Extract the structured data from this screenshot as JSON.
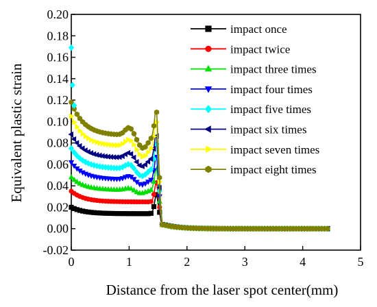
{
  "chart_data": {
    "type": "line",
    "title": "",
    "xlabel": "Distance from the laser spot center(mm)",
    "ylabel": "Equivalent plastic strain",
    "xlim": [
      0,
      5
    ],
    "ylim": [
      -0.02,
      0.2
    ],
    "x_ticks": [
      0,
      1,
      2,
      3,
      4,
      5
    ],
    "y_ticks": [
      -0.02,
      0.0,
      0.02,
      0.04,
      0.06,
      0.08,
      0.1,
      0.12,
      0.14,
      0.16,
      0.18,
      0.2
    ],
    "x_tick_labels": [
      "0",
      "1",
      "2",
      "3",
      "4",
      "5"
    ],
    "y_tick_labels": [
      "-0.02",
      "0.00",
      "0.02",
      "0.04",
      "0.06",
      "0.08",
      "0.10",
      "0.12",
      "0.14",
      "0.16",
      "0.18",
      "0.20"
    ],
    "grid": false,
    "legend_position": "top-right",
    "series": [
      {
        "name": "impact once",
        "color": "#000000",
        "marker": "square",
        "base": 0.014,
        "center": 0.02,
        "dip": 0.0,
        "dip_x": 1.2,
        "peak": 0.034,
        "tail": 0.0
      },
      {
        "name": "impact twice",
        "color": "#ff0000",
        "marker": "circle",
        "base": 0.025,
        "center": 0.035,
        "dip": 0.0,
        "dip_x": 1.2,
        "peak": 0.046,
        "tail": 0.0
      },
      {
        "name": "impact three times",
        "color": "#00dd00",
        "marker": "triangle-up",
        "base": 0.036,
        "center": 0.048,
        "dip": 0.003,
        "dip_x": 1.2,
        "peak": 0.06,
        "tail": 0.0
      },
      {
        "name": "impact four times",
        "color": "#0000ff",
        "marker": "triangle-down",
        "base": 0.046,
        "center": 0.062,
        "dip": 0.005,
        "dip_x": 1.22,
        "peak": 0.072,
        "tail": 0.0
      },
      {
        "name": "impact five times",
        "color": "#00ffff",
        "marker": "diamond",
        "base": 0.056,
        "center": 0.075,
        "dip": 0.007,
        "dip_x": 1.22,
        "peak": 0.085,
        "tail": 0.0
      },
      {
        "name": "impact six times",
        "color": "#000080",
        "marker": "triangle-left",
        "base": 0.066,
        "center": 0.088,
        "dip": 0.008,
        "dip_x": 1.22,
        "peak": 0.093,
        "tail": 0.0
      },
      {
        "name": "impact seven times",
        "color": "#ffff00",
        "marker": "triangle-right",
        "base": 0.077,
        "center": 0.105,
        "dip": 0.01,
        "dip_x": 1.24,
        "peak": 0.107,
        "tail": 0.0
      },
      {
        "name": "impact eight times",
        "color": "#808000",
        "marker": "hexagon",
        "base": 0.087,
        "center": 0.118,
        "dip": 0.012,
        "dip_x": 1.24,
        "peak": 0.117,
        "tail": 0.0
      }
    ],
    "annotations": [
      {
        "series": "impact five times",
        "x": 0.0,
        "y": 0.169
      },
      {
        "series": "impact five times",
        "x": 0.02,
        "y": 0.134
      },
      {
        "series": "impact five times",
        "x": 0.05,
        "y": 0.115
      }
    ]
  }
}
